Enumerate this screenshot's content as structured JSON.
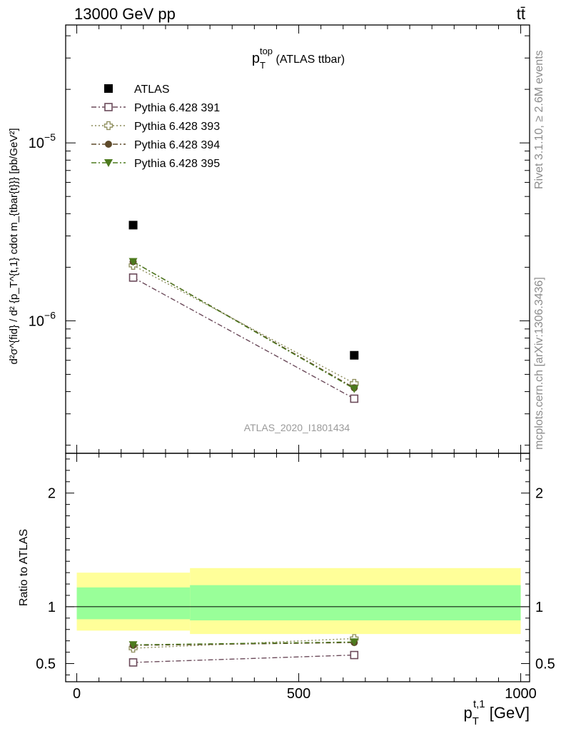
{
  "header": {
    "left": "13000 GeV pp",
    "right": "tt̄"
  },
  "side_labels": {
    "rivet": "Rivet 3.1.10, ≥ 2.6M events",
    "mcplots": "mcplots.cern.ch [arXiv:1306.3436]"
  },
  "watermark": "ATLAS_2020_I1801434",
  "chart_data": [
    {
      "type": "scatter",
      "panel": "main",
      "title": {
        "main": "p",
        "sup": "top",
        "sub": "T",
        "rest": " (ATLAS ttbar)"
      },
      "ylabel": "d²σ^{fid} / d² {p_T^{t,1} cdot m_{tbar{t}}} [pb/GeV²]",
      "yscale": "log",
      "ylim": [
        1.8e-07,
        4.6e-05
      ],
      "xlim": [
        -25,
        1020
      ],
      "y_ticks": [
        {
          "value": 1e-05,
          "base": "10",
          "exp": "−5"
        },
        {
          "value": 1e-06,
          "base": "10",
          "exp": "−6"
        }
      ],
      "legend_position": "top-left",
      "series": [
        {
          "name": "ATLAS",
          "marker": "square-filled",
          "color": "#000000",
          "line": "none",
          "x": [
            127,
            625
          ],
          "y": [
            3.45e-06,
            6.4e-07
          ]
        },
        {
          "name": "Pythia 6.428 391",
          "marker": "square-open",
          "color": "#6b4a5a",
          "line": "dash-dot",
          "x": [
            127,
            625
          ],
          "y": [
            1.75e-06,
            3.65e-07
          ]
        },
        {
          "name": "Pythia 6.428 393",
          "marker": "cross-open",
          "color": "#8c8c5a",
          "line": "dotted",
          "x": [
            127,
            625
          ],
          "y": [
            2.05e-06,
            4.45e-07
          ]
        },
        {
          "name": "Pythia 6.428 394",
          "marker": "circle-filled",
          "color": "#5e4a2a",
          "line": "dash-dot",
          "x": [
            127,
            625
          ],
          "y": [
            2.15e-06,
            4.2e-07
          ]
        },
        {
          "name": "Pythia 6.428 395",
          "marker": "triangle-down-filled",
          "color": "#4d7a1e",
          "line": "dash-dot",
          "x": [
            127,
            625
          ],
          "y": [
            2.15e-06,
            4.15e-07
          ]
        }
      ]
    },
    {
      "type": "scatter",
      "panel": "ratio",
      "ylabel": "Ratio to ATLAS",
      "xlabel": {
        "main": "p",
        "sup": "t,1",
        "sub": "T",
        "rest": " [GeV]"
      },
      "xlim": [
        -25,
        1020
      ],
      "ylim": [
        0.34,
        2.35
      ],
      "x_ticks": [
        0,
        500,
        1000
      ],
      "y_ticks": [
        0.5,
        1,
        2
      ],
      "bands": [
        {
          "x": [
            0,
            255
          ],
          "yellow": [
            0.79,
            1.3
          ],
          "green": [
            0.89,
            1.17
          ]
        },
        {
          "x": [
            255,
            1000
          ],
          "yellow": [
            0.76,
            1.34
          ],
          "green": [
            0.88,
            1.19
          ]
        }
      ],
      "series": [
        {
          "name": "Pythia 6.428 391",
          "x": [
            127,
            625
          ],
          "y": [
            0.51,
            0.575
          ]
        },
        {
          "name": "Pythia 6.428 393",
          "x": [
            127,
            625
          ],
          "y": [
            0.635,
            0.72
          ]
        },
        {
          "name": "Pythia 6.428 394",
          "x": [
            127,
            625
          ],
          "y": [
            0.66,
            0.685
          ]
        },
        {
          "name": "Pythia 6.428 395",
          "x": [
            127,
            625
          ],
          "y": [
            0.665,
            0.69
          ]
        }
      ]
    }
  ]
}
